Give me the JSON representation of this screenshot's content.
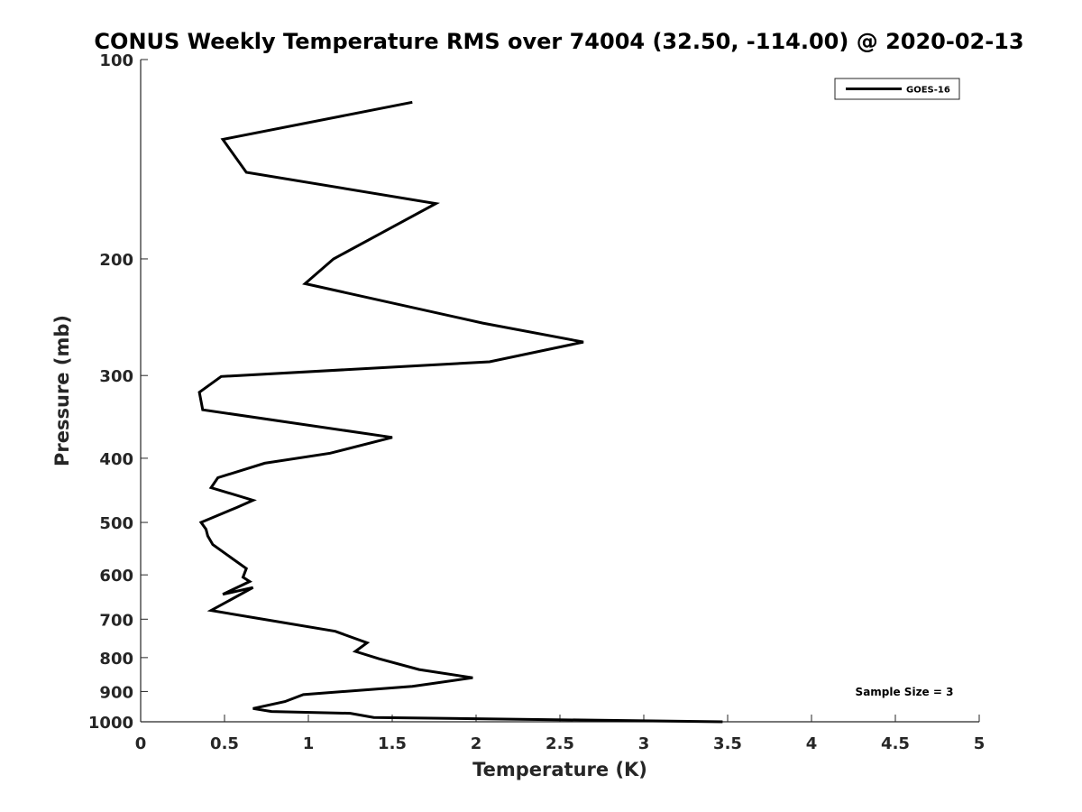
{
  "chart_data": {
    "type": "line",
    "title": "CONUS Weekly Temperature RMS over 74004 (32.50, -114.00) @ 2020-02-13",
    "xlabel": "Temperature (K)",
    "ylabel": "Pressure (mb)",
    "xlim": [
      0,
      5
    ],
    "ylim": [
      100,
      1000
    ],
    "y_scale": "log",
    "y_reversed": true,
    "grid": false,
    "legend_position": "top-right",
    "x_ticks": [
      "0",
      "0.5",
      "1",
      "1.5",
      "2",
      "2.5",
      "3",
      "3.5",
      "4",
      "4.5",
      "5"
    ],
    "x_tick_values": [
      0,
      0.5,
      1,
      1.5,
      2,
      2.5,
      3,
      3.5,
      4,
      4.5,
      5
    ],
    "y_ticks": [
      "100",
      "200",
      "300",
      "400",
      "500",
      "600",
      "700",
      "800",
      "900",
      "1000"
    ],
    "y_tick_values": [
      100,
      200,
      300,
      400,
      500,
      600,
      700,
      800,
      900,
      1000
    ],
    "series": [
      {
        "name": "GOES-16",
        "color": "#000000",
        "x": [
          1.62,
          0.49,
          0.63,
          1.76,
          1.15,
          0.98,
          2.04,
          2.64,
          2.08,
          0.48,
          0.35,
          0.37,
          1.5,
          1.13,
          0.74,
          0.46,
          0.42,
          0.67,
          0.57,
          0.36,
          0.39,
          0.4,
          0.43,
          0.63,
          0.61,
          0.65,
          0.49,
          0.67,
          0.42,
          0.7,
          1.16,
          1.35,
          1.28,
          1.42,
          1.66,
          1.98,
          1.62,
          0.97,
          0.86,
          0.67,
          0.78,
          1.25,
          1.39,
          3.47
        ],
        "y": [
          116,
          132,
          148,
          165,
          200,
          218,
          250,
          267,
          286,
          301,
          318,
          338,
          372,
          393,
          407,
          428,
          443,
          463,
          475,
          500,
          512,
          524,
          540,
          587,
          605,
          614,
          642,
          627,
          679,
          698,
          730,
          760,
          783,
          803,
          834,
          858,
          884,
          910,
          932,
          955,
          965,
          971,
          985,
          1000
        ]
      }
    ],
    "annotation": "Sample Size = 3"
  }
}
